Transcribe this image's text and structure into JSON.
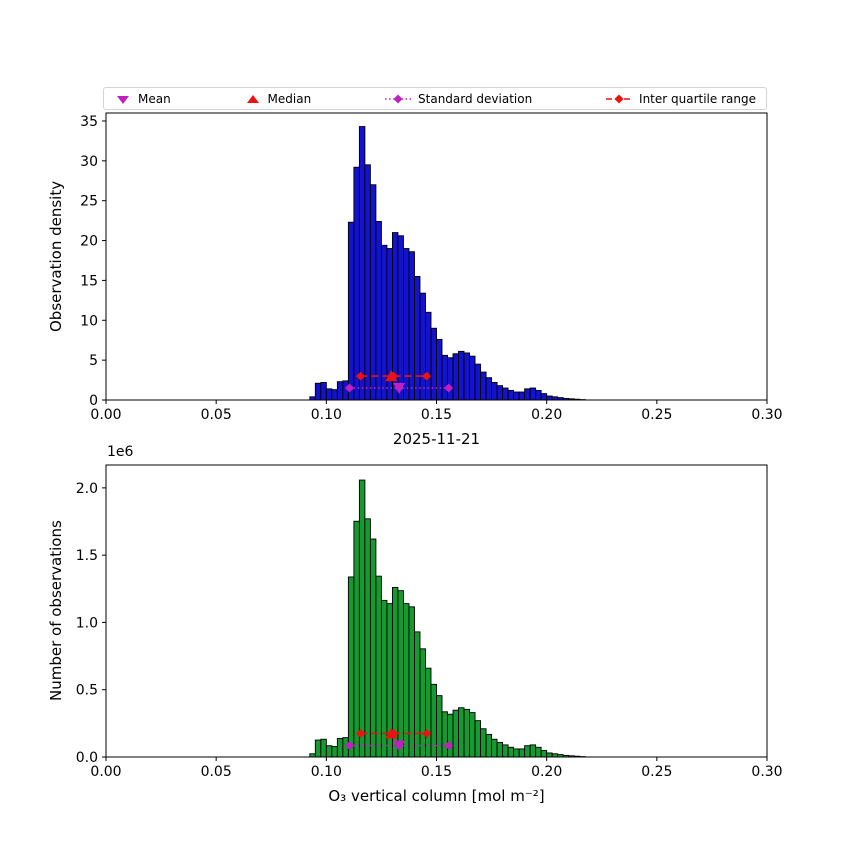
{
  "figure": {
    "title": "2025-11-21",
    "xlabel": "O₃ vertical column [mol m⁻²]",
    "offset_text": "1e6",
    "background": "#ffffff"
  },
  "legend": {
    "items": [
      {
        "label": "Mean",
        "marker": "triangle-down-icon",
        "color": "#c020c0"
      },
      {
        "label": "Median",
        "marker": "triangle-up-icon",
        "color": "#ee1111"
      },
      {
        "label": "Standard deviation",
        "marker": "diamond-dotted-line-icon",
        "color": "#c020c0"
      },
      {
        "label": "Inter quartile range",
        "marker": "diamond-dashed-line-icon",
        "color": "#ee1111"
      }
    ]
  },
  "stats": {
    "mean": 0.133,
    "median": 0.1295,
    "std": 0.0225,
    "std_range": [
      0.1105,
      0.1555
    ],
    "iqr_range": [
      0.1155,
      0.1455
    ]
  },
  "chart_data": [
    {
      "type": "bar",
      "name": "density-histogram",
      "ylabel": "Observation density",
      "bar_color": "#1313cf",
      "edge_color": "#000000",
      "grid": false,
      "xlim": [
        0.0,
        0.3
      ],
      "ylim": [
        0,
        36
      ],
      "xticks": [
        0.0,
        0.05,
        0.1,
        0.15,
        0.2,
        0.25,
        0.3
      ],
      "xtick_labels": [
        "0.00",
        "0.05",
        "0.10",
        "0.15",
        "0.20",
        "0.25",
        "0.30"
      ],
      "yticks": [
        0,
        5,
        10,
        15,
        20,
        25,
        30,
        35
      ],
      "ytick_labels": [
        "0",
        "5",
        "10",
        "15",
        "20",
        "25",
        "30",
        "35"
      ],
      "bin_start": 0.0925,
      "bin_width": 0.0025,
      "values": [
        0.4,
        2.1,
        2.2,
        1.4,
        1.3,
        2.3,
        2.4,
        22.3,
        29.2,
        34.3,
        29.5,
        27.0,
        22.4,
        19.4,
        19.0,
        21.0,
        20.6,
        19.0,
        18.6,
        15.5,
        13.4,
        11.0,
        9.0,
        7.6,
        5.6,
        5.3,
        5.8,
        6.1,
        5.9,
        5.5,
        4.5,
        3.5,
        2.8,
        2.2,
        1.8,
        1.5,
        1.2,
        1.0,
        1.0,
        1.4,
        1.5,
        1.2,
        0.8,
        0.5,
        0.4,
        0.3,
        0.2,
        0.15,
        0.1,
        0.05
      ],
      "marker_rows": {
        "iqr_y": 3.0,
        "std_y": 1.5
      }
    },
    {
      "type": "bar",
      "name": "counts-histogram",
      "title": "2025-11-21",
      "ylabel": "Number of observations",
      "bar_color": "#169a30",
      "edge_color": "#000000",
      "grid": false,
      "xlim": [
        0.0,
        0.3
      ],
      "ylim": [
        0,
        2170000
      ],
      "xticks": [
        0.0,
        0.05,
        0.1,
        0.15,
        0.2,
        0.25,
        0.3
      ],
      "xtick_labels": [
        "0.00",
        "0.05",
        "0.10",
        "0.15",
        "0.20",
        "0.25",
        "0.30"
      ],
      "yticks": [
        0,
        500000,
        1000000,
        1500000,
        2000000
      ],
      "ytick_labels": [
        "0.0",
        "0.5",
        "1.0",
        "1.5",
        "2.0"
      ],
      "y_offset_text": "1e6",
      "bin_start": 0.0925,
      "bin_width": 0.0025,
      "values": [
        24000,
        126000,
        132000,
        84000,
        78000,
        138000,
        144000,
        1338000,
        1752000,
        2058000,
        1770000,
        1620000,
        1344000,
        1164000,
        1140000,
        1260000,
        1236000,
        1140000,
        1116000,
        930000,
        804000,
        660000,
        540000,
        456000,
        336000,
        318000,
        348000,
        366000,
        354000,
        330000,
        270000,
        210000,
        168000,
        132000,
        108000,
        90000,
        72000,
        60000,
        60000,
        84000,
        90000,
        72000,
        48000,
        30000,
        24000,
        18000,
        12000,
        9000,
        6000,
        3000
      ],
      "marker_rows": {
        "iqr_y": 175000,
        "std_y": 85000
      }
    }
  ]
}
